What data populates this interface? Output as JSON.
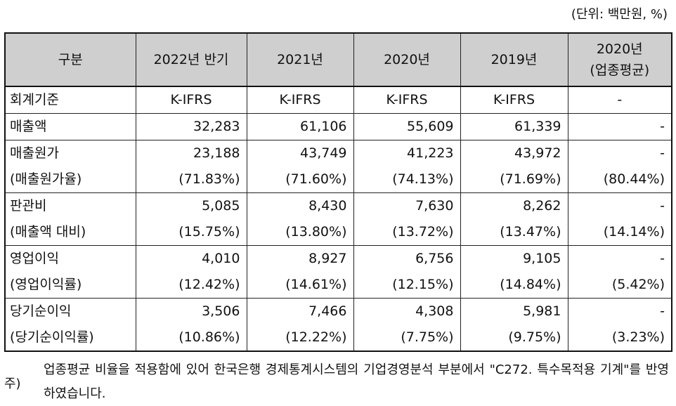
{
  "unit_label": "(단위: 백만원, %)",
  "headers": [
    "구분",
    "2022년 반기",
    "2021년",
    "2020년",
    "2019년",
    [
      "2020년",
      "(업종평균)"
    ]
  ],
  "rows": [
    {
      "label": [
        "회계기준"
      ],
      "cols": [
        [
          "K-IFRS"
        ],
        [
          "K-IFRS"
        ],
        [
          "K-IFRS"
        ],
        [
          "K-IFRS"
        ],
        [
          "-"
        ]
      ],
      "center": true
    },
    {
      "label": [
        "매출액"
      ],
      "cols": [
        [
          "32,283"
        ],
        [
          "61,106"
        ],
        [
          "55,609"
        ],
        [
          "61,339"
        ],
        [
          "-"
        ]
      ]
    },
    {
      "label": [
        "매출원가",
        "(매출원가율)"
      ],
      "cols": [
        [
          "23,188",
          "(71.83%)"
        ],
        [
          "43,749",
          "(71.60%)"
        ],
        [
          "41,223",
          "(74.13%)"
        ],
        [
          "43,972",
          "(71.69%)"
        ],
        [
          "-",
          "(80.44%)"
        ]
      ]
    },
    {
      "label": [
        "판관비",
        "(매출액 대비)"
      ],
      "cols": [
        [
          "5,085",
          "(15.75%)"
        ],
        [
          "8,430",
          "(13.80%)"
        ],
        [
          "7,630",
          "(13.72%)"
        ],
        [
          "8,262",
          "(13.47%)"
        ],
        [
          "-",
          "(14.14%)"
        ]
      ]
    },
    {
      "label": [
        "영업이익",
        "(영업이익률)"
      ],
      "cols": [
        [
          "4,010",
          "(12.42%)"
        ],
        [
          "8,927",
          "(14.61%)"
        ],
        [
          "6,756",
          "(12.15%)"
        ],
        [
          "9,105",
          "(14.84%)"
        ],
        [
          "-",
          "(5.42%)"
        ]
      ]
    },
    {
      "label": [
        "당기순이익",
        "(당기순이익률)"
      ],
      "cols": [
        [
          "3,506",
          "(10.86%)"
        ],
        [
          "7,466",
          "(12.22%)"
        ],
        [
          "4,308",
          "(7.75%)"
        ],
        [
          "5,981",
          "(9.75%)"
        ],
        [
          "-",
          "(3.23%)"
        ]
      ]
    }
  ],
  "note": {
    "mark": "주)",
    "text": "업종평균 비율을 적용함에 있어 한국은행 경제통계시스템의 기업경영분석 부분에서 \"C272. 특수목적용 기계\"를 반영하였습니다."
  }
}
